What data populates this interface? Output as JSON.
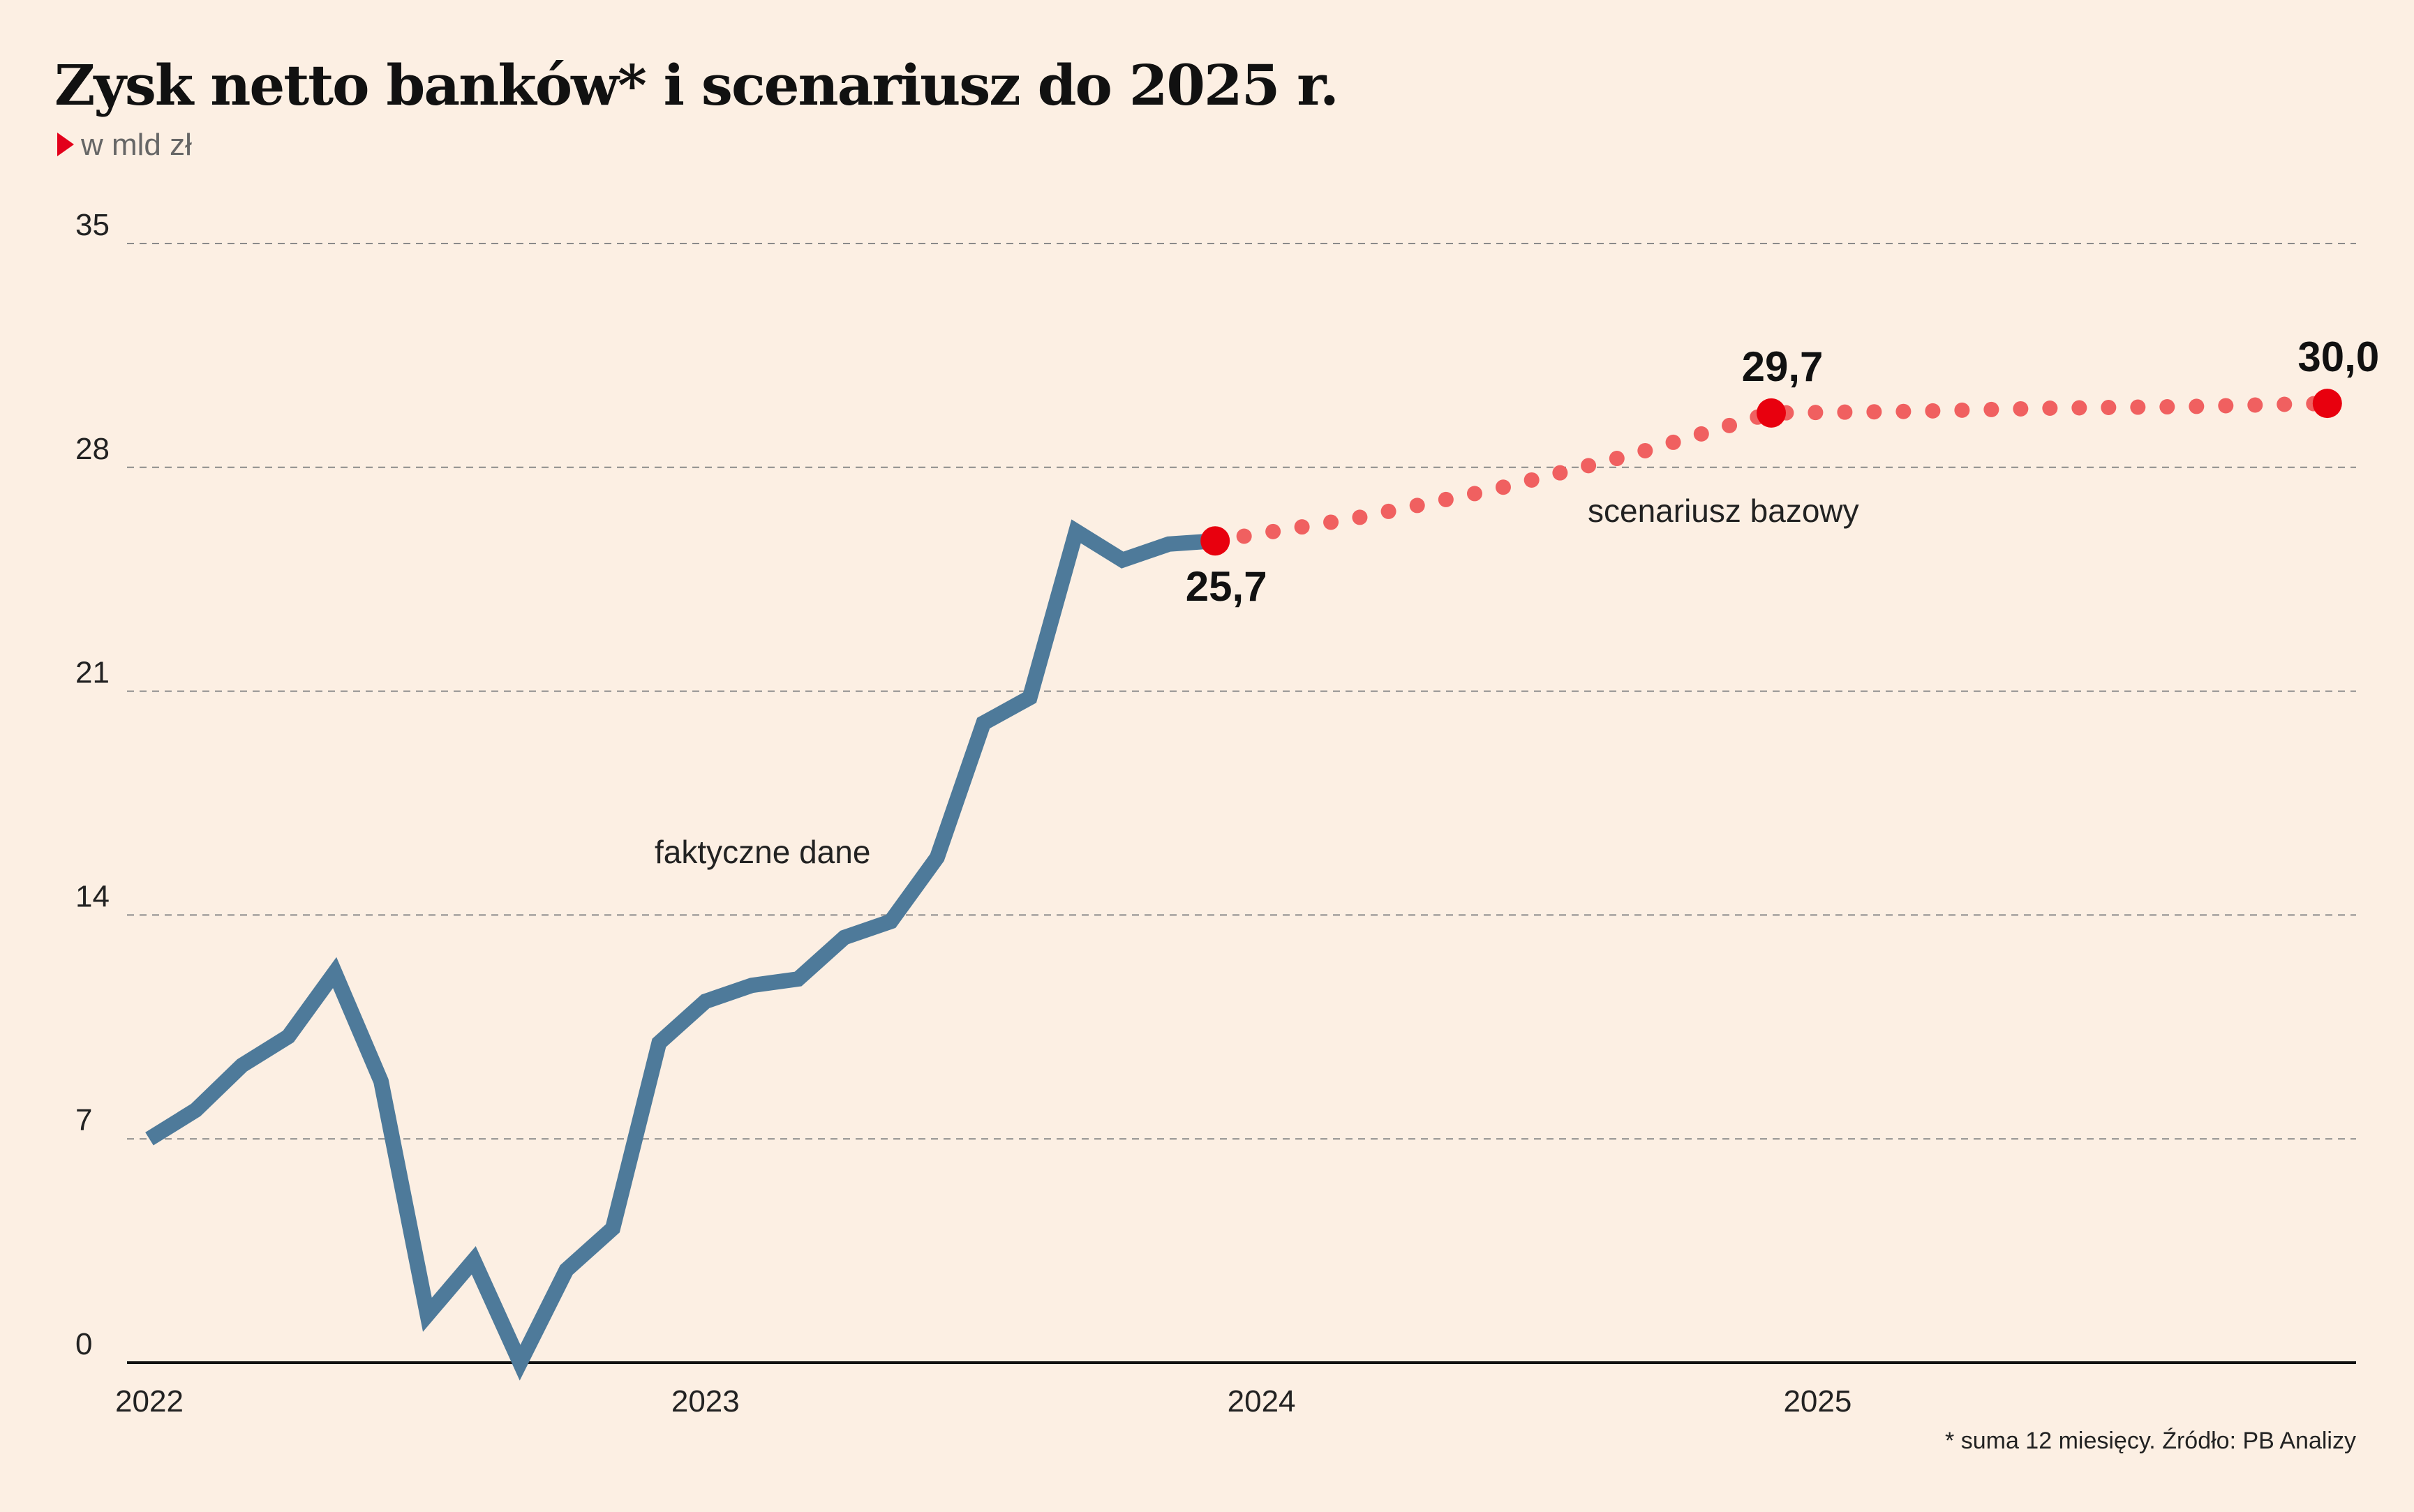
{
  "chart_data": {
    "type": "line",
    "title": "Zysk netto banków* i scenariusz do 2025 r.",
    "subtitle": "w mld zł",
    "ylim": [
      0,
      35
    ],
    "yticks": [
      "0",
      "7",
      "14",
      "21",
      "28",
      "35"
    ],
    "xticks": [
      "2022",
      "2023",
      "2024",
      "2025"
    ],
    "grid": true,
    "series": [
      {
        "name": "faktyczne dane",
        "color": "#4e7a9a",
        "points": [
          [
            "2022-01",
            7.0
          ],
          [
            "2022-02",
            7.9
          ],
          [
            "2022-03",
            9.3
          ],
          [
            "2022-04",
            10.2
          ],
          [
            "2022-05",
            12.2
          ],
          [
            "2022-06",
            8.8
          ],
          [
            "2022-07",
            1.5
          ],
          [
            "2022-08",
            3.2
          ],
          [
            "2022-09",
            0.0
          ],
          [
            "2022-10",
            2.9
          ],
          [
            "2022-11",
            4.2
          ],
          [
            "2022-12",
            10.0
          ],
          [
            "2023-01",
            11.3
          ],
          [
            "2023-02",
            11.8
          ],
          [
            "2023-03",
            12.0
          ],
          [
            "2023-04",
            13.3
          ],
          [
            "2023-05",
            13.8
          ],
          [
            "2023-06",
            15.8
          ],
          [
            "2023-07",
            20.0
          ],
          [
            "2023-08",
            20.8
          ],
          [
            "2023-09",
            26.0
          ],
          [
            "2023-10",
            25.1
          ],
          [
            "2023-11",
            25.6
          ],
          [
            "2023-12",
            25.7
          ]
        ]
      },
      {
        "name": "scenariusz bazowy",
        "color": "#f06060",
        "points": [
          [
            "2023-12",
            25.7
          ],
          [
            "2024-03",
            26.4
          ],
          [
            "2024-06",
            27.3
          ],
          [
            "2024-09",
            28.4
          ],
          [
            "2024-12",
            29.7
          ],
          [
            "2025-03",
            29.75
          ],
          [
            "2025-06",
            29.85
          ],
          [
            "2025-09",
            29.9
          ],
          [
            "2025-12",
            30.0
          ]
        ]
      }
    ],
    "highlights": [
      {
        "x": "2023-12",
        "y": 25.7,
        "label": "25,7",
        "position": "below"
      },
      {
        "x": "2024-12",
        "y": 29.7,
        "label": "29,7",
        "position": "above"
      },
      {
        "x": "2025-12",
        "y": 30.0,
        "label": "30,0",
        "position": "above"
      }
    ],
    "footnote": "* suma 12 miesięcy. Źródło: PB Analizy"
  }
}
